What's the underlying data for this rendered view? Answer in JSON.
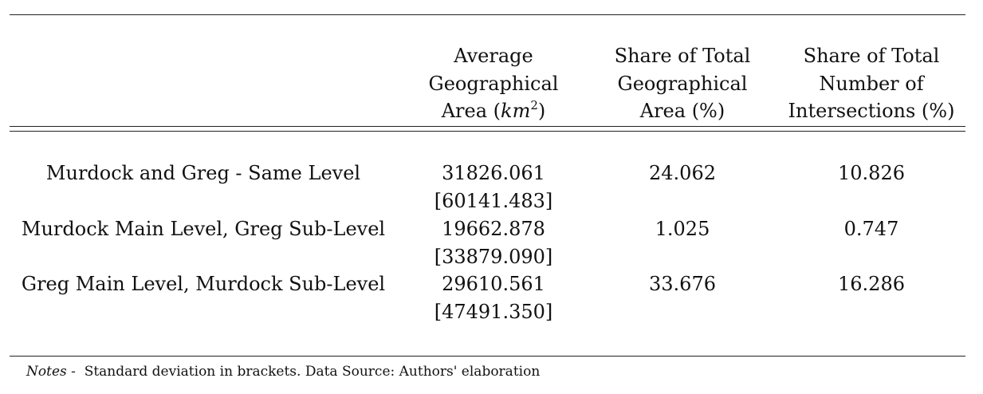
{
  "table": {
    "headers": {
      "col1": "",
      "col2": [
        "Average",
        "Geographical",
        "Area ("
      ],
      "col2_unit": "km",
      "col2_unit_exp": "2",
      "col2_close": ")",
      "col3": [
        "Share of Total",
        "Geographical",
        "Area (%)"
      ],
      "col4": [
        "Share of Total",
        "Number of",
        "Intersections (%)"
      ]
    },
    "rows": [
      {
        "label": "Murdock and Greg - Same Level",
        "avg_area": "31826.061",
        "avg_area_sd": "[60141.483]",
        "share_area": "24.062",
        "share_intersections": "10.826"
      },
      {
        "label": "Murdock Main Level, Greg Sub-Level",
        "avg_area": "19662.878",
        "avg_area_sd": "[33879.090]",
        "share_area": "1.025",
        "share_intersections": "0.747"
      },
      {
        "label": "Greg Main Level, Murdock Sub-Level",
        "avg_area": "29610.561",
        "avg_area_sd": "[47491.350]",
        "share_area": "33.676",
        "share_intersections": "16.286"
      }
    ],
    "notes_label": "Notes -",
    "notes_text": "Standard deviation in brackets. Data Source: Authors' elaboration"
  }
}
